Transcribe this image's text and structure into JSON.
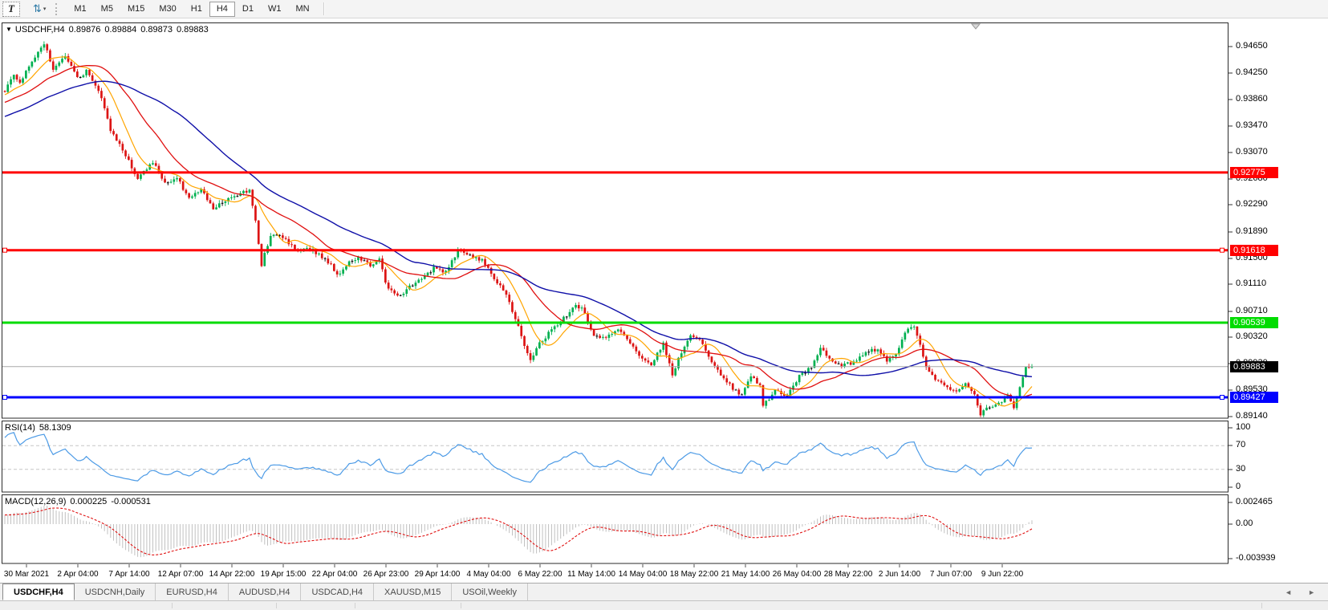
{
  "toolbar": {
    "text_tool_label": "T",
    "timeframes": [
      "M1",
      "M5",
      "M15",
      "M30",
      "H1",
      "H4",
      "D1",
      "W1",
      "MN"
    ],
    "active_timeframe": "H4"
  },
  "icons": {
    "title_caret": "▼",
    "updown_arrows": "⇅",
    "caret_small": "▾",
    "scroll_left": "◄",
    "scroll_right": "►"
  },
  "chart_header": {
    "symbol": "USDCHF,H4",
    "open": "0.89876",
    "high": "0.89884",
    "low": "0.89873",
    "close": "0.89883"
  },
  "price_axis": {
    "ticks": [
      "0.94650",
      "0.94250",
      "0.93860",
      "0.93470",
      "0.93070",
      "0.92680",
      "0.92290",
      "0.91890",
      "0.91500",
      "0.91110",
      "0.90710",
      "0.90320",
      "0.89930",
      "0.89530",
      "0.89140"
    ]
  },
  "levels": [
    {
      "label": "0.92775",
      "price": 0.92775,
      "color": "#FF0000",
      "width": 3,
      "handles": false
    },
    {
      "label": "0.91618",
      "price": 0.91618,
      "color": "#FF0000",
      "width": 3,
      "handles": true
    },
    {
      "label": "0.90539",
      "price": 0.90539,
      "color": "#00DC00",
      "width": 3,
      "handles": false
    },
    {
      "label": "0.89427",
      "price": 0.89427,
      "color": "#0000FF",
      "width": 3,
      "handles": true
    }
  ],
  "current_price": {
    "label": "0.89883",
    "value": 0.89883,
    "line_color": "#A8A8A8",
    "box_color": "#000000"
  },
  "rsi": {
    "title": "RSI(14)",
    "value": "58.1309",
    "scale": [
      "100",
      "70",
      "30",
      "0"
    ],
    "scale_values": [
      100,
      70,
      30,
      0
    ],
    "overbought": 70,
    "oversold": 30,
    "line_color": "#4D9BE6",
    "level_color": "#C6C6C6"
  },
  "macd": {
    "title": "MACD(12,26,9)",
    "main_value": "0.000225",
    "signal_value": "-0.000531",
    "scale": [
      "0.002465",
      "0.00",
      "-0.003939"
    ],
    "scale_values": [
      0.002465,
      0,
      -0.003939
    ],
    "histogram_color": "#C0C0C0",
    "signal_color": "#E01010"
  },
  "x_axis": {
    "labels": [
      "30 Mar 2021",
      "2 Apr 04:00",
      "7 Apr 14:00",
      "12 Apr 07:00",
      "14 Apr 22:00",
      "19 Apr 15:00",
      "22 Apr 04:00",
      "26 Apr 23:00",
      "29 Apr 14:00",
      "4 May 04:00",
      "6 May 22:00",
      "11 May 14:00",
      "14 May 04:00",
      "18 May 22:00",
      "21 May 14:00",
      "26 May 04:00",
      "28 May 22:00",
      "2 Jun 14:00",
      "7 Jun 07:00",
      "9 Jun 22:00"
    ]
  },
  "tabs": {
    "items": [
      {
        "label": "USDCHF,H4",
        "active": true
      },
      {
        "label": "USDCNH,Daily",
        "active": false
      },
      {
        "label": "EURUSD,H4",
        "active": false
      },
      {
        "label": "AUDUSD,H4",
        "active": false
      },
      {
        "label": "USDCAD,H4",
        "active": false
      },
      {
        "label": "XAUUSD,M15",
        "active": false
      },
      {
        "label": "USOil,Weekly",
        "active": false
      }
    ]
  },
  "chart_data": {
    "type": "candlestick",
    "symbol": "USDCHF",
    "timeframe": "H4",
    "bar_count": 341,
    "warmup_bars": 60,
    "price_range_visible": [
      0.8914,
      0.9465
    ],
    "up_color": "#00B050",
    "down_color": "#DC1414",
    "doji_color": "#000000",
    "ma": [
      {
        "period": 10,
        "color": "#FFA500",
        "w": 1.2
      },
      {
        "period": 25,
        "color": "#E01010",
        "w": 1.3
      },
      {
        "period": 52,
        "color": "#0F0FA8",
        "w": 1.4
      }
    ],
    "anchors": [
      [
        -60,
        0.931
      ],
      [
        -45,
        0.933
      ],
      [
        -30,
        0.9355
      ],
      [
        -15,
        0.9378
      ],
      [
        -5,
        0.9392
      ],
      [
        0,
        0.94
      ],
      [
        3,
        0.9425
      ],
      [
        5,
        0.9412
      ],
      [
        8,
        0.9437
      ],
      [
        13,
        0.947
      ],
      [
        16,
        0.9432
      ],
      [
        20,
        0.945
      ],
      [
        24,
        0.9418
      ],
      [
        27,
        0.9428
      ],
      [
        31,
        0.94
      ],
      [
        35,
        0.9342
      ],
      [
        40,
        0.9303
      ],
      [
        44,
        0.9268
      ],
      [
        49,
        0.9293
      ],
      [
        53,
        0.9262
      ],
      [
        57,
        0.927
      ],
      [
        61,
        0.9238
      ],
      [
        65,
        0.9252
      ],
      [
        69,
        0.9222
      ],
      [
        73,
        0.9236
      ],
      [
        78,
        0.9246
      ],
      [
        81,
        0.9252
      ],
      [
        83,
        0.9205
      ],
      [
        85,
        0.914
      ],
      [
        88,
        0.9185
      ],
      [
        92,
        0.918
      ],
      [
        96,
        0.9163
      ],
      [
        100,
        0.9167
      ],
      [
        104,
        0.9155
      ],
      [
        108,
        0.914
      ],
      [
        110,
        0.9124
      ],
      [
        113,
        0.914
      ],
      [
        117,
        0.9152
      ],
      [
        121,
        0.914
      ],
      [
        124,
        0.915
      ],
      [
        126,
        0.9112
      ],
      [
        130,
        0.9092
      ],
      [
        134,
        0.9107
      ],
      [
        138,
        0.9118
      ],
      [
        142,
        0.9135
      ],
      [
        146,
        0.913
      ],
      [
        150,
        0.916
      ],
      [
        154,
        0.9153
      ],
      [
        158,
        0.9147
      ],
      [
        162,
        0.912
      ],
      [
        166,
        0.9095
      ],
      [
        169,
        0.906
      ],
      [
        173,
        0.9008
      ],
      [
        174,
        0.9
      ],
      [
        177,
        0.9022
      ],
      [
        181,
        0.9043
      ],
      [
        185,
        0.906
      ],
      [
        189,
        0.908
      ],
      [
        191,
        0.9075
      ],
      [
        195,
        0.9035
      ],
      [
        199,
        0.9032
      ],
      [
        203,
        0.9045
      ],
      [
        207,
        0.9022
      ],
      [
        211,
        0.8998
      ],
      [
        214,
        0.8993
      ],
      [
        218,
        0.9022
      ],
      [
        221,
        0.8975
      ],
      [
        223,
        0.9
      ],
      [
        227,
        0.9035
      ],
      [
        230,
        0.9028
      ],
      [
        234,
        0.8995
      ],
      [
        238,
        0.897
      ],
      [
        242,
        0.8952
      ],
      [
        244,
        0.8945
      ],
      [
        247,
        0.8975
      ],
      [
        250,
        0.896
      ],
      [
        251,
        0.893
      ],
      [
        255,
        0.8952
      ],
      [
        259,
        0.8945
      ],
      [
        263,
        0.8975
      ],
      [
        267,
        0.8988
      ],
      [
        270,
        0.9015
      ],
      [
        274,
        0.8995
      ],
      [
        277,
        0.899
      ],
      [
        281,
        0.8995
      ],
      [
        285,
        0.901
      ],
      [
        289,
        0.9015
      ],
      [
        292,
        0.8998
      ],
      [
        295,
        0.9005
      ],
      [
        298,
        0.904
      ],
      [
        301,
        0.9048
      ],
      [
        303,
        0.902
      ],
      [
        305,
        0.899
      ],
      [
        308,
        0.897
      ],
      [
        311,
        0.8958
      ],
      [
        315,
        0.895
      ],
      [
        318,
        0.8962
      ],
      [
        321,
        0.8945
      ],
      [
        323,
        0.8918
      ],
      [
        326,
        0.893
      ],
      [
        329,
        0.8932
      ],
      [
        332,
        0.8945
      ],
      [
        334,
        0.8925
      ],
      [
        336,
        0.896
      ],
      [
        338,
        0.899
      ],
      [
        340,
        0.89883
      ]
    ]
  }
}
